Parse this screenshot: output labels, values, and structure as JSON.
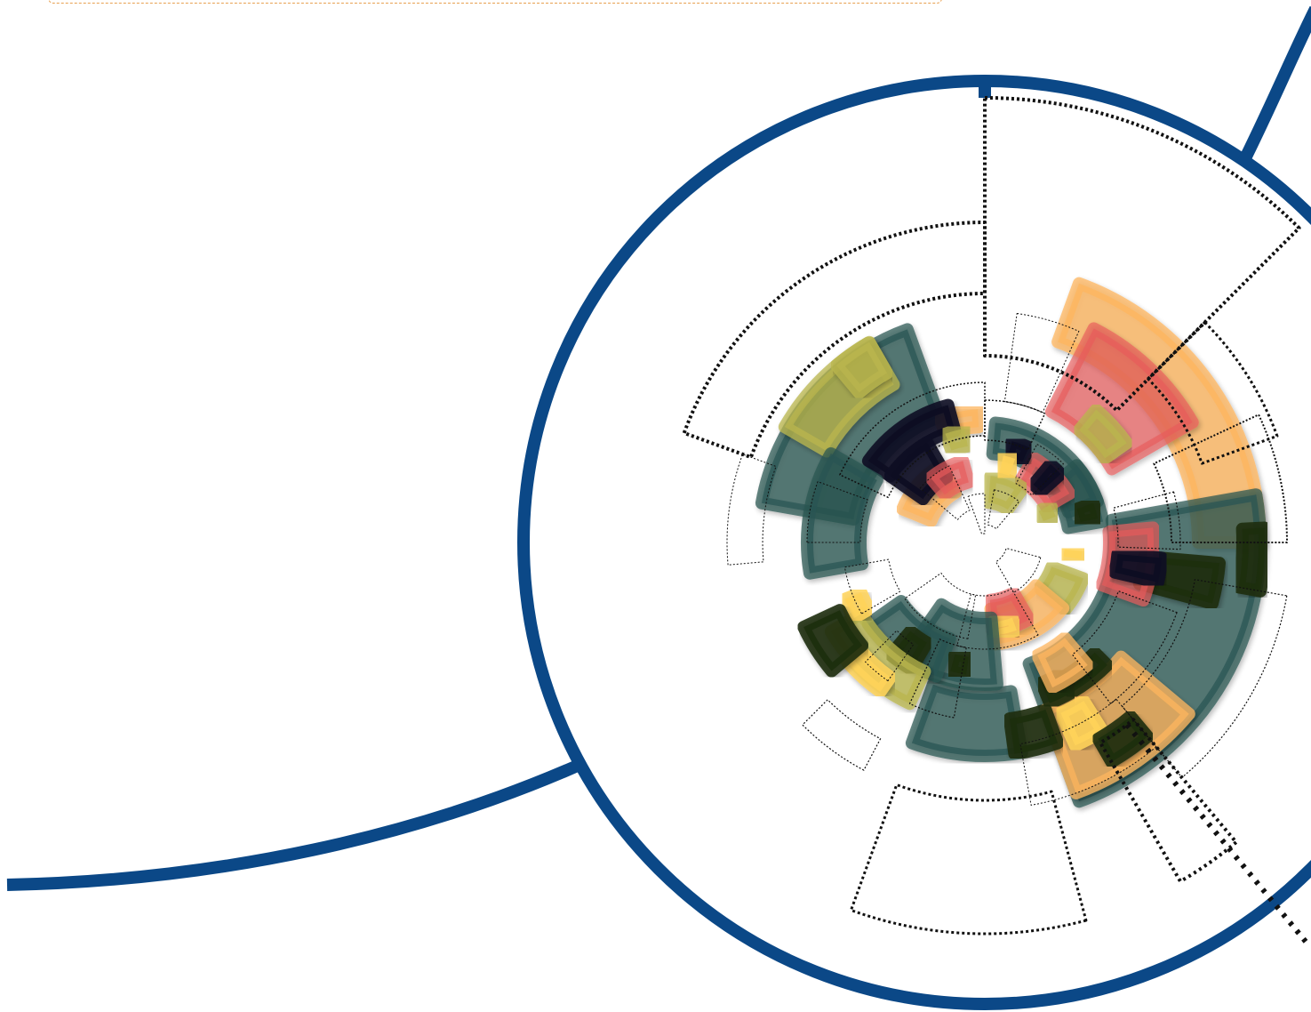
{
  "artwork": {
    "kind": "radial-segment-illustration",
    "frame_color": "#0b4887",
    "dotted_color": "#111111",
    "palette": {
      "teal": "#2a5452",
      "peach": "#fdb65f",
      "coral": "#e85a5a",
      "olive": "#b9b64e",
      "navy": "#0d0e22",
      "darkgreen": "#1c2e0d",
      "yellow": "#ffd45a"
    },
    "top_strip_border": "#e8a050"
  }
}
